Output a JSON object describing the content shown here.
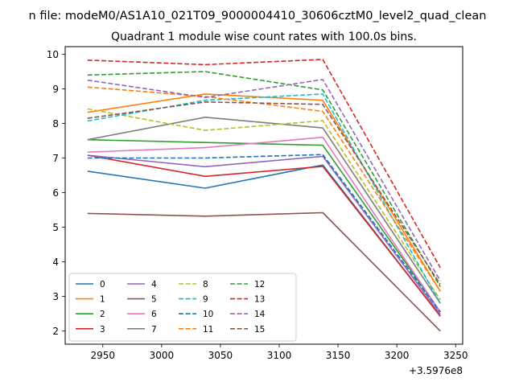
{
  "suptitle": "n file: modeM0/AS1A10_021T09_9000004410_30606cztM0_level2_quad_clean",
  "chart_data": {
    "type": "line",
    "title": "Quadrant 1 module wise count rates with 100.0s bins.",
    "xlabel": "",
    "ylabel": "",
    "x_offset_label": "+3.5976e8",
    "x": [
      2937,
      3037,
      3137,
      3237
    ],
    "xlim": [
      2918,
      3256
    ],
    "ylim": [
      1.62,
      10.22
    ],
    "xticks": [
      2950,
      3000,
      3050,
      3100,
      3150,
      3200,
      3250
    ],
    "yticks": [
      2,
      3,
      4,
      5,
      6,
      7,
      8,
      9,
      10
    ],
    "legend_position": "lower-left",
    "legend_columns": 4,
    "series": [
      {
        "name": "0",
        "color": "#1f77b4",
        "dash": "solid",
        "values": [
          6.62,
          6.13,
          6.8,
          2.43
        ]
      },
      {
        "name": "1",
        "color": "#ff7f0e",
        "dash": "solid",
        "values": [
          8.32,
          8.85,
          8.67,
          3.15
        ]
      },
      {
        "name": "2",
        "color": "#2ca02c",
        "dash": "solid",
        "values": [
          7.53,
          7.45,
          7.37,
          2.55
        ]
      },
      {
        "name": "3",
        "color": "#d62728",
        "dash": "solid",
        "values": [
          7.08,
          6.47,
          6.76,
          2.43
        ]
      },
      {
        "name": "4",
        "color": "#9467bd",
        "dash": "solid",
        "values": [
          7.08,
          6.75,
          7.05,
          2.48
        ]
      },
      {
        "name": "5",
        "color": "#8c564b",
        "dash": "solid",
        "values": [
          5.4,
          5.32,
          5.42,
          2.0
        ]
      },
      {
        "name": "6",
        "color": "#e377c2",
        "dash": "solid",
        "values": [
          7.17,
          7.3,
          7.6,
          2.55
        ]
      },
      {
        "name": "7",
        "color": "#7f7f7f",
        "dash": "solid",
        "values": [
          7.53,
          8.18,
          7.87,
          2.8
        ]
      },
      {
        "name": "8",
        "color": "#bcbd22",
        "dash": "dashed",
        "values": [
          8.42,
          7.8,
          8.08,
          2.9
        ]
      },
      {
        "name": "9",
        "color": "#17becf",
        "dash": "dashed",
        "values": [
          8.07,
          8.67,
          8.85,
          2.8
        ]
      },
      {
        "name": "10",
        "color": "#1f77b4",
        "dash": "dashed",
        "values": [
          7.0,
          7.0,
          7.1,
          2.55
        ]
      },
      {
        "name": "11",
        "color": "#ff7f0e",
        "dash": "dashed",
        "values": [
          9.05,
          8.78,
          8.35,
          3.15
        ]
      },
      {
        "name": "12",
        "color": "#2ca02c",
        "dash": "dashed",
        "values": [
          9.4,
          9.5,
          8.97,
          3.28
        ]
      },
      {
        "name": "13",
        "color": "#d62728",
        "dash": "dashed",
        "values": [
          9.83,
          9.7,
          9.85,
          3.83
        ]
      },
      {
        "name": "14",
        "color": "#9467bd",
        "dash": "dashed",
        "values": [
          9.25,
          8.75,
          9.27,
          3.45
        ]
      },
      {
        "name": "15",
        "color": "#8c564b",
        "dash": "dashed",
        "values": [
          8.15,
          8.62,
          8.55,
          3.35
        ]
      }
    ]
  }
}
